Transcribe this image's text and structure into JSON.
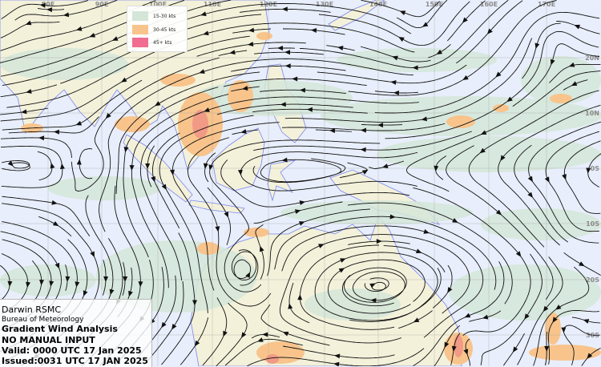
{
  "map": {
    "longitude_labels": [
      "80E",
      "90E",
      "100E",
      "110E",
      "120E",
      "130E",
      "140E",
      "150E",
      "160E",
      "170E"
    ],
    "latitude_labels": [
      "20N",
      "10N",
      "0S",
      "10S",
      "20S",
      "30S"
    ],
    "colors": {
      "sea": "#e8eefb",
      "land": "#f3f1da",
      "coastline": "#7b86f0",
      "wind_15_30": "#d3e6d8",
      "wind_30_45": "#f8c48c",
      "wind_45_plus": "#f06c90",
      "strong_core": "#f19a85",
      "streamline": "#111111"
    }
  },
  "legend": {
    "items": [
      {
        "label": "15-30 kts",
        "color": "#d3e6d8"
      },
      {
        "label": "30-45 kts",
        "color": "#f8c48c"
      },
      {
        "label": "45+ kts",
        "color": "#f06c90"
      }
    ]
  },
  "info": {
    "centre": "Darwin RSMC",
    "agency": "Bureau of Meteorology",
    "product": "Gradient Wind Analysis",
    "note": "NO MANUAL INPUT",
    "valid": "Valid:   0000 UTC 17 Jan 2025",
    "issued": "Issued:0031 UTC 17 JAN 2025"
  }
}
